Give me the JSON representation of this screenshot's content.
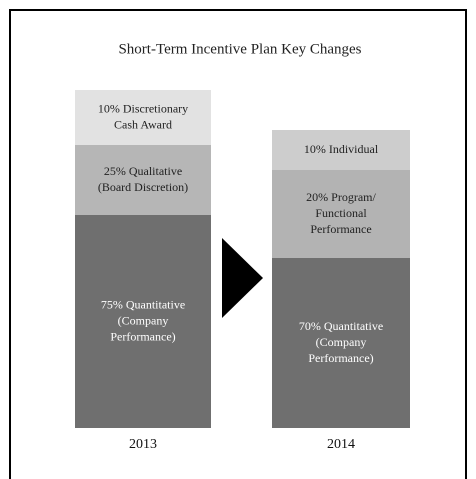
{
  "title": "Short-Term Incentive Plan Key Changes",
  "columns": [
    {
      "label": "2013",
      "segments": [
        {
          "lines": [
            "10% Discretionary",
            "Cash Award"
          ]
        },
        {
          "lines": [
            "25% Qualitative",
            "(Board Discretion)"
          ]
        },
        {
          "lines": [
            "75% Quantitative",
            "(Company",
            "Performance)"
          ]
        }
      ]
    },
    {
      "label": "2014",
      "segments": [
        {
          "lines": [
            "10% Individual"
          ]
        },
        {
          "lines": [
            "20% Program/",
            "Functional",
            "Performance"
          ]
        },
        {
          "lines": [
            "70% Quantitative",
            "(Company",
            "Performance)"
          ]
        }
      ]
    }
  ]
}
